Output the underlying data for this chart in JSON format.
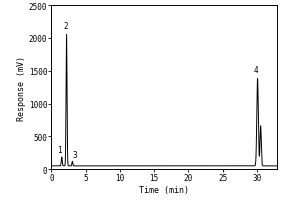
{
  "title": "",
  "xlabel": "Time (min)",
  "ylabel": "Response (mV)",
  "xlim": [
    0,
    33
  ],
  "ylim": [
    0,
    2500
  ],
  "yticks": [
    0,
    500,
    1000,
    1500,
    2000,
    2500
  ],
  "xticks": [
    0,
    5,
    10,
    15,
    20,
    25,
    30
  ],
  "peak1_time": 1.5,
  "peak1_height": 185,
  "peak1_label": "1",
  "peak2_time": 2.2,
  "peak2_height": 2050,
  "peak2_label": "2",
  "peak3_time": 3.05,
  "peak3_height": 120,
  "peak3_label": "3",
  "peak4_time": 30.1,
  "peak4_height": 1380,
  "peak4_label": "4",
  "peak4b_time": 30.55,
  "peak4b_height": 660,
  "line_color": "#000000",
  "bg_color": "#ffffff",
  "baseline": 50,
  "font_family": "monospace",
  "peak1_sigma": 0.07,
  "peak2_sigma": 0.07,
  "peak3_sigma": 0.06,
  "peak4_sigma": 0.11,
  "peak4b_sigma": 0.09
}
